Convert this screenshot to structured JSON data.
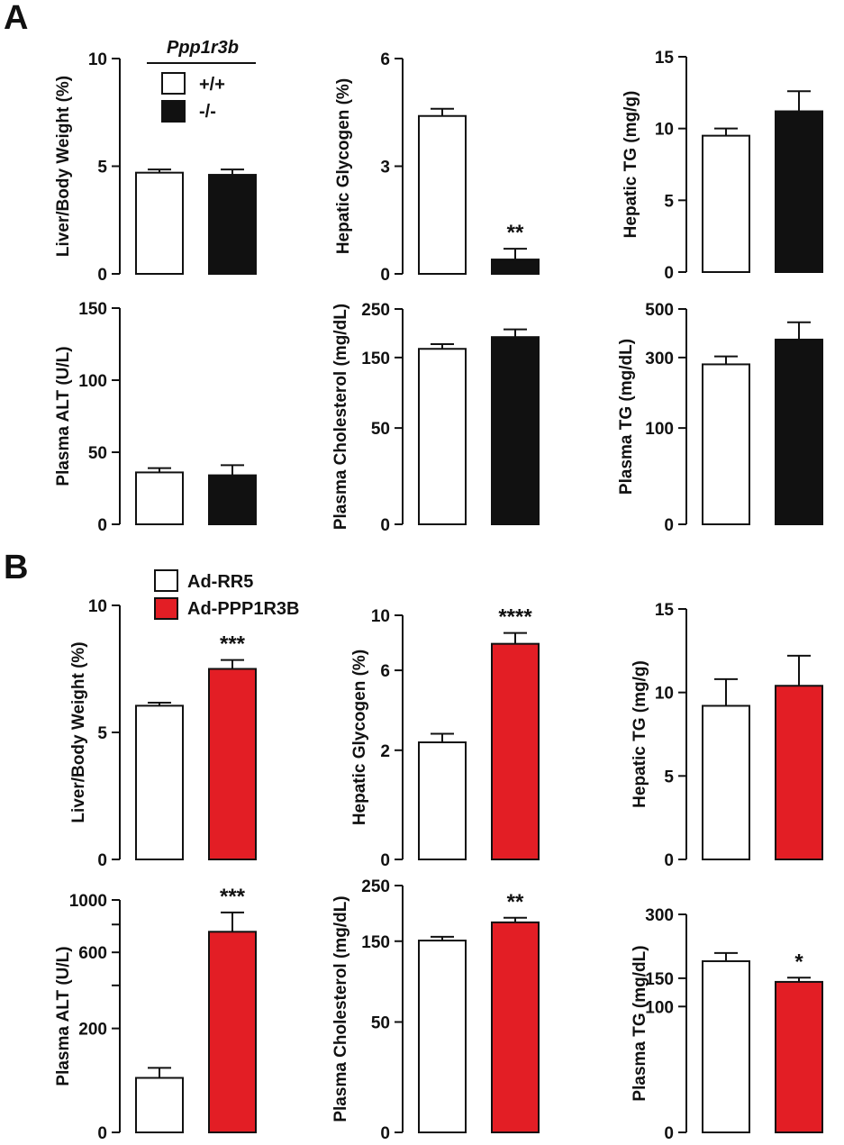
{
  "panel_labels": {
    "a": "A",
    "b": "B"
  },
  "legend_a": {
    "title": "Ppp1r3b",
    "items": [
      {
        "label": "+/+",
        "color": "#ffffff"
      },
      {
        "label": "-/-",
        "color": "#111111"
      }
    ]
  },
  "legend_b": {
    "items": [
      {
        "label": "Ad-RR5",
        "color": "#ffffff"
      },
      {
        "label": "Ad-PPP1R3B",
        "color": "#e31e25"
      }
    ]
  },
  "colors": {
    "wt": "#ffffff",
    "ko": "#111111",
    "control": "#ffffff",
    "overexpression": "#e31e25",
    "axis": "#111111"
  },
  "chart_data": [
    {
      "panel": "A",
      "type": "bar",
      "ylabel": "Liver/Body Weight (%)",
      "ylim": [
        0,
        10
      ],
      "yticks": [
        "0",
        "5",
        "10"
      ],
      "minor_ticks": [],
      "scale": "linear",
      "bars": [
        {
          "value": 4.7,
          "error": 0.15,
          "color": "#ffffff",
          "annotation": ""
        },
        {
          "value": 4.6,
          "error": 0.25,
          "color": "#111111",
          "annotation": ""
        }
      ]
    },
    {
      "panel": "A",
      "type": "bar",
      "ylabel": "Hepatic Glycogen (%)",
      "ylim": [
        0,
        6
      ],
      "yticks": [
        "0",
        "3",
        "6"
      ],
      "minor_ticks": [],
      "scale": "linear",
      "bars": [
        {
          "value": 4.4,
          "error": 0.2,
          "color": "#ffffff",
          "annotation": ""
        },
        {
          "value": 0.4,
          "error": 0.3,
          "color": "#111111",
          "annotation": "**"
        }
      ]
    },
    {
      "panel": "A",
      "type": "bar",
      "ylabel": "Hepatic TG (mg/g)",
      "ylim": [
        0,
        15
      ],
      "yticks": [
        "0",
        "5",
        "10",
        "15"
      ],
      "minor_ticks": [],
      "scale": "linear",
      "bars": [
        {
          "value": 9.5,
          "error": 0.5,
          "color": "#ffffff",
          "annotation": ""
        },
        {
          "value": 11.2,
          "error": 1.4,
          "color": "#111111",
          "annotation": ""
        }
      ]
    },
    {
      "panel": "A",
      "type": "bar",
      "ylabel": "Plasma ALT (U/L)",
      "ylim": [
        0,
        150
      ],
      "yticks": [
        "0",
        "50",
        "100",
        "150"
      ],
      "minor_ticks": [],
      "scale": "linear",
      "bars": [
        {
          "value": 36,
          "error": 3,
          "color": "#ffffff",
          "annotation": ""
        },
        {
          "value": 34,
          "error": 7,
          "color": "#111111",
          "annotation": ""
        }
      ]
    },
    {
      "panel": "A",
      "type": "bar",
      "ylabel": "Plasma Cholesterol (mg/dL)",
      "ylim": [
        0,
        250
      ],
      "yticks": [
        "0",
        "50",
        "150",
        "250"
      ],
      "minor_ticks": [],
      "scale": "sqrt",
      "bars": [
        {
          "value": 166,
          "error": 9,
          "color": "#ffffff",
          "annotation": ""
        },
        {
          "value": 189,
          "error": 16,
          "color": "#111111",
          "annotation": ""
        }
      ]
    },
    {
      "panel": "A",
      "type": "bar",
      "ylabel": "Plasma TG (mg/dL)",
      "ylim": [
        0,
        500
      ],
      "yticks": [
        "0",
        "100",
        "300",
        "500"
      ],
      "minor_ticks": [],
      "scale": "sqrt",
      "bars": [
        {
          "value": 276,
          "error": 28,
          "color": "#ffffff",
          "annotation": ""
        },
        {
          "value": 368,
          "error": 72,
          "color": "#111111",
          "annotation": ""
        }
      ]
    },
    {
      "panel": "B",
      "type": "bar",
      "ylabel": "Liver/Body Weight (%)",
      "ylim": [
        0,
        10
      ],
      "yticks": [
        "0",
        "5",
        "10"
      ],
      "minor_ticks": [],
      "scale": "linear",
      "bars": [
        {
          "value": 6.05,
          "error": 0.12,
          "color": "#ffffff",
          "annotation": ""
        },
        {
          "value": 7.5,
          "error": 0.35,
          "color": "#e31e25",
          "annotation": "***"
        }
      ]
    },
    {
      "panel": "B",
      "type": "bar",
      "ylabel": "Hepatic Glycogen (%)",
      "ylim": [
        0,
        10
      ],
      "yticks": [
        "0",
        "2",
        "6",
        "10"
      ],
      "minor_ticks": [],
      "scale": "sqrt",
      "bars": [
        {
          "value": 2.3,
          "error": 0.35,
          "color": "#ffffff",
          "annotation": ""
        },
        {
          "value": 7.8,
          "error": 0.8,
          "color": "#e31e25",
          "annotation": "****"
        }
      ]
    },
    {
      "panel": "B",
      "type": "bar",
      "ylabel": "Hepatic TG (mg/g)",
      "ylim": [
        0,
        15
      ],
      "yticks": [
        "0",
        "5",
        "10",
        "15"
      ],
      "minor_ticks": [],
      "scale": "linear",
      "bars": [
        {
          "value": 9.2,
          "error": 1.6,
          "color": "#ffffff",
          "annotation": ""
        },
        {
          "value": 10.4,
          "error": 1.8,
          "color": "#e31e25",
          "annotation": ""
        }
      ]
    },
    {
      "panel": "B",
      "type": "bar",
      "ylabel": "Plasma ALT (U/L)",
      "ylim": [
        0,
        1000
      ],
      "yticks": [
        "0",
        "200",
        "600",
        "1000"
      ],
      "minor_ticks": [
        400,
        800
      ],
      "scale": "sqrt",
      "bars": [
        {
          "value": 55,
          "error": 22,
          "color": "#ffffff",
          "annotation": ""
        },
        {
          "value": 745,
          "error": 150,
          "color": "#e31e25",
          "annotation": "***"
        }
      ]
    },
    {
      "panel": "B",
      "type": "bar",
      "ylabel": "Plasma Cholesterol (mg/dL)",
      "ylim": [
        0,
        250
      ],
      "yticks": [
        "0",
        "50",
        "150",
        "250"
      ],
      "minor_ticks": [],
      "scale": "sqrt",
      "bars": [
        {
          "value": 151,
          "error": 6,
          "color": "#ffffff",
          "annotation": ""
        },
        {
          "value": 181,
          "error": 8,
          "color": "#e31e25",
          "annotation": "**"
        }
      ]
    },
    {
      "panel": "B",
      "type": "bar",
      "ylabel": "Plasma TG (mg/dL)",
      "ylim": [
        0,
        300
      ],
      "yticks": [
        "0",
        "100",
        "150",
        "300"
      ],
      "minor_ticks": [],
      "scale": "sqrt",
      "bars": [
        {
          "value": 185,
          "error": 18,
          "color": "#ffffff",
          "annotation": ""
        },
        {
          "value": 143,
          "error": 8,
          "color": "#e31e25",
          "annotation": "*"
        }
      ]
    }
  ]
}
